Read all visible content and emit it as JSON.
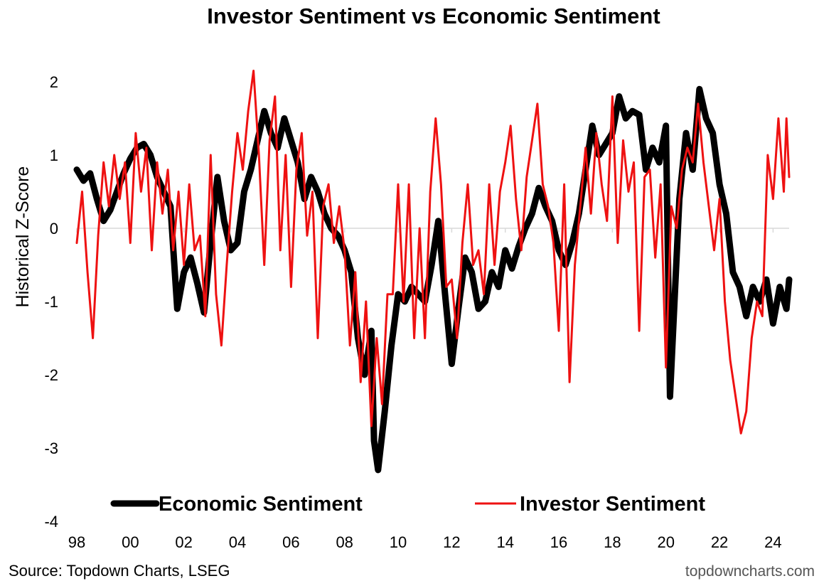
{
  "chart_data": {
    "type": "line",
    "title": "Investor Sentiment vs Economic Sentiment",
    "ylabel": "Historical Z-Score",
    "xlabel": "",
    "ylim": [
      -4,
      2
    ],
    "yticks": [
      2,
      1,
      0,
      -1,
      -2,
      -3,
      -4
    ],
    "xlim": [
      1998,
      2024.6
    ],
    "xticks": [
      {
        "label": "98",
        "x": 1998
      },
      {
        "label": "00",
        "x": 2000
      },
      {
        "label": "02",
        "x": 2002
      },
      {
        "label": "04",
        "x": 2004
      },
      {
        "label": "06",
        "x": 2006
      },
      {
        "label": "08",
        "x": 2008
      },
      {
        "label": "10",
        "x": 2010
      },
      {
        "label": "12",
        "x": 2012
      },
      {
        "label": "14",
        "x": 2014
      },
      {
        "label": "16",
        "x": 2016
      },
      {
        "label": "18",
        "x": 2018
      },
      {
        "label": "20",
        "x": 2020
      },
      {
        "label": "22",
        "x": 2022
      },
      {
        "label": "24",
        "x": 2024
      }
    ],
    "grid": false,
    "zero_line": true,
    "legend_position": "bottom",
    "series": [
      {
        "name": "Economic Sentiment",
        "color": "#000000",
        "points": [
          [
            1998.0,
            0.8
          ],
          [
            1998.25,
            0.65
          ],
          [
            1998.5,
            0.75
          ],
          [
            1998.75,
            0.4
          ],
          [
            1999.0,
            0.1
          ],
          [
            1999.25,
            0.25
          ],
          [
            1999.5,
            0.5
          ],
          [
            1999.75,
            0.75
          ],
          [
            2000.0,
            0.95
          ],
          [
            2000.25,
            1.1
          ],
          [
            2000.5,
            1.15
          ],
          [
            2000.75,
            1.0
          ],
          [
            2001.0,
            0.7
          ],
          [
            2001.25,
            0.5
          ],
          [
            2001.5,
            0.3
          ],
          [
            2001.75,
            -1.1
          ],
          [
            2002.0,
            -0.6
          ],
          [
            2002.25,
            -0.4
          ],
          [
            2002.5,
            -0.75
          ],
          [
            2002.75,
            -1.15
          ],
          [
            2003.0,
            -0.2
          ],
          [
            2003.25,
            0.7
          ],
          [
            2003.5,
            0.1
          ],
          [
            2003.75,
            -0.3
          ],
          [
            2004.0,
            -0.2
          ],
          [
            2004.25,
            0.5
          ],
          [
            2004.5,
            0.8
          ],
          [
            2004.75,
            1.2
          ],
          [
            2005.0,
            1.6
          ],
          [
            2005.25,
            1.3
          ],
          [
            2005.5,
            1.1
          ],
          [
            2005.75,
            1.5
          ],
          [
            2006.0,
            1.2
          ],
          [
            2006.25,
            0.9
          ],
          [
            2006.5,
            0.4
          ],
          [
            2006.75,
            0.7
          ],
          [
            2007.0,
            0.5
          ],
          [
            2007.25,
            0.2
          ],
          [
            2007.5,
            0.0
          ],
          [
            2007.75,
            -0.1
          ],
          [
            2008.0,
            -0.3
          ],
          [
            2008.25,
            -0.6
          ],
          [
            2008.5,
            -1.5
          ],
          [
            2008.75,
            -2.0
          ],
          [
            2009.0,
            -1.4
          ],
          [
            2009.1,
            -2.9
          ],
          [
            2009.25,
            -3.3
          ],
          [
            2009.5,
            -2.5
          ],
          [
            2009.75,
            -1.6
          ],
          [
            2010.0,
            -0.9
          ],
          [
            2010.25,
            -1.0
          ],
          [
            2010.5,
            -0.8
          ],
          [
            2010.75,
            -0.9
          ],
          [
            2011.0,
            -1.0
          ],
          [
            2011.25,
            -0.5
          ],
          [
            2011.5,
            0.1
          ],
          [
            2011.75,
            -0.9
          ],
          [
            2012.0,
            -1.85
          ],
          [
            2012.25,
            -1.1
          ],
          [
            2012.5,
            -0.4
          ],
          [
            2012.75,
            -0.6
          ],
          [
            2013.0,
            -1.1
          ],
          [
            2013.25,
            -1.0
          ],
          [
            2013.5,
            -0.6
          ],
          [
            2013.75,
            -0.8
          ],
          [
            2014.0,
            -0.3
          ],
          [
            2014.25,
            -0.55
          ],
          [
            2014.5,
            -0.25
          ],
          [
            2014.75,
            0.0
          ],
          [
            2015.0,
            0.2
          ],
          [
            2015.25,
            0.55
          ],
          [
            2015.5,
            0.3
          ],
          [
            2015.75,
            0.1
          ],
          [
            2016.0,
            -0.3
          ],
          [
            2016.25,
            -0.5
          ],
          [
            2016.5,
            -0.2
          ],
          [
            2016.75,
            0.2
          ],
          [
            2017.0,
            0.8
          ],
          [
            2017.25,
            1.4
          ],
          [
            2017.5,
            1.0
          ],
          [
            2017.75,
            1.15
          ],
          [
            2018.0,
            1.3
          ],
          [
            2018.25,
            1.8
          ],
          [
            2018.5,
            1.5
          ],
          [
            2018.75,
            1.6
          ],
          [
            2019.0,
            1.55
          ],
          [
            2019.25,
            0.8
          ],
          [
            2019.5,
            1.1
          ],
          [
            2019.75,
            0.9
          ],
          [
            2020.0,
            1.4
          ],
          [
            2020.15,
            -2.3
          ],
          [
            2020.5,
            0.4
          ],
          [
            2020.75,
            1.3
          ],
          [
            2021.0,
            0.8
          ],
          [
            2021.25,
            1.9
          ],
          [
            2021.5,
            1.5
          ],
          [
            2021.75,
            1.3
          ],
          [
            2022.0,
            0.6
          ],
          [
            2022.25,
            0.2
          ],
          [
            2022.5,
            -0.6
          ],
          [
            2022.75,
            -0.8
          ],
          [
            2023.0,
            -1.2
          ],
          [
            2023.25,
            -0.8
          ],
          [
            2023.5,
            -1.0
          ],
          [
            2023.75,
            -0.7
          ],
          [
            2024.0,
            -1.3
          ],
          [
            2024.25,
            -0.8
          ],
          [
            2024.5,
            -1.1
          ],
          [
            2024.6,
            -0.7
          ]
        ]
      },
      {
        "name": "Investor Sentiment",
        "color": "#ee1111",
        "points": [
          [
            1998.0,
            -0.2
          ],
          [
            1998.2,
            0.5
          ],
          [
            1998.4,
            -0.6
          ],
          [
            1998.6,
            -1.5
          ],
          [
            1998.8,
            -0.1
          ],
          [
            1999.0,
            0.9
          ],
          [
            1999.2,
            0.3
          ],
          [
            1999.4,
            1.0
          ],
          [
            1999.6,
            0.4
          ],
          [
            1999.8,
            0.9
          ],
          [
            2000.0,
            -0.2
          ],
          [
            2000.2,
            1.3
          ],
          [
            2000.4,
            0.5
          ],
          [
            2000.6,
            1.1
          ],
          [
            2000.8,
            -0.3
          ],
          [
            2001.0,
            0.9
          ],
          [
            2001.2,
            0.2
          ],
          [
            2001.4,
            0.8
          ],
          [
            2001.6,
            -0.3
          ],
          [
            2001.8,
            0.5
          ],
          [
            2002.0,
            -0.5
          ],
          [
            2002.2,
            0.6
          ],
          [
            2002.4,
            -0.3
          ],
          [
            2002.6,
            -0.1
          ],
          [
            2002.8,
            -1.2
          ],
          [
            2003.0,
            1.0
          ],
          [
            2003.2,
            -0.9
          ],
          [
            2003.4,
            -1.6
          ],
          [
            2003.6,
            -0.5
          ],
          [
            2003.8,
            0.5
          ],
          [
            2004.0,
            1.3
          ],
          [
            2004.2,
            0.8
          ],
          [
            2004.4,
            1.6
          ],
          [
            2004.6,
            2.15
          ],
          [
            2004.8,
            1.0
          ],
          [
            2005.0,
            -0.5
          ],
          [
            2005.2,
            1.2
          ],
          [
            2005.4,
            1.8
          ],
          [
            2005.6,
            -0.3
          ],
          [
            2005.8,
            1.0
          ],
          [
            2006.0,
            -0.8
          ],
          [
            2006.2,
            0.8
          ],
          [
            2006.4,
            1.3
          ],
          [
            2006.6,
            -0.1
          ],
          [
            2006.8,
            0.5
          ],
          [
            2007.0,
            -1.5
          ],
          [
            2007.2,
            0.3
          ],
          [
            2007.4,
            0.6
          ],
          [
            2007.6,
            -0.2
          ],
          [
            2007.8,
            0.3
          ],
          [
            2008.0,
            -0.3
          ],
          [
            2008.2,
            -1.6
          ],
          [
            2008.4,
            -0.6
          ],
          [
            2008.6,
            -2.1
          ],
          [
            2008.8,
            -1.0
          ],
          [
            2009.0,
            -2.7
          ],
          [
            2009.2,
            -1.5
          ],
          [
            2009.4,
            -2.4
          ],
          [
            2009.6,
            -0.9
          ],
          [
            2009.8,
            -0.9
          ],
          [
            2010.0,
            0.6
          ],
          [
            2010.2,
            -1.0
          ],
          [
            2010.4,
            0.6
          ],
          [
            2010.6,
            -1.5
          ],
          [
            2010.8,
            0.0
          ],
          [
            2011.0,
            -1.5
          ],
          [
            2011.2,
            0.5
          ],
          [
            2011.4,
            1.5
          ],
          [
            2011.6,
            0.6
          ],
          [
            2011.8,
            -0.8
          ],
          [
            2012.0,
            -0.7
          ],
          [
            2012.2,
            -1.5
          ],
          [
            2012.4,
            -0.2
          ],
          [
            2012.6,
            0.6
          ],
          [
            2012.8,
            -0.5
          ],
          [
            2013.0,
            -0.3
          ],
          [
            2013.2,
            -0.9
          ],
          [
            2013.4,
            0.6
          ],
          [
            2013.6,
            -0.5
          ],
          [
            2013.8,
            0.5
          ],
          [
            2014.0,
            0.9
          ],
          [
            2014.2,
            1.4
          ],
          [
            2014.4,
            0.4
          ],
          [
            2014.6,
            -0.3
          ],
          [
            2014.8,
            0.7
          ],
          [
            2015.0,
            1.2
          ],
          [
            2015.2,
            1.7
          ],
          [
            2015.4,
            0.6
          ],
          [
            2015.6,
            0.3
          ],
          [
            2015.8,
            -0.2
          ],
          [
            2016.0,
            -1.4
          ],
          [
            2016.2,
            0.6
          ],
          [
            2016.4,
            -2.1
          ],
          [
            2016.6,
            -0.5
          ],
          [
            2016.8,
            0.3
          ],
          [
            2017.0,
            1.1
          ],
          [
            2017.2,
            0.2
          ],
          [
            2017.4,
            1.3
          ],
          [
            2017.6,
            0.6
          ],
          [
            2017.8,
            0.1
          ],
          [
            2018.0,
            1.8
          ],
          [
            2018.2,
            -0.2
          ],
          [
            2018.4,
            1.2
          ],
          [
            2018.6,
            0.5
          ],
          [
            2018.8,
            0.9
          ],
          [
            2019.0,
            -1.4
          ],
          [
            2019.2,
            0.7
          ],
          [
            2019.4,
            0.8
          ],
          [
            2019.6,
            -0.4
          ],
          [
            2019.8,
            0.6
          ],
          [
            2020.0,
            -1.9
          ],
          [
            2020.2,
            0.3
          ],
          [
            2020.4,
            0.0
          ],
          [
            2020.6,
            0.8
          ],
          [
            2020.8,
            1.1
          ],
          [
            2021.0,
            0.9
          ],
          [
            2021.2,
            1.7
          ],
          [
            2021.4,
            0.9
          ],
          [
            2021.6,
            0.3
          ],
          [
            2021.8,
            -0.3
          ],
          [
            2022.0,
            0.4
          ],
          [
            2022.2,
            -1.0
          ],
          [
            2022.4,
            -1.8
          ],
          [
            2022.6,
            -2.3
          ],
          [
            2022.8,
            -2.8
          ],
          [
            2023.0,
            -2.5
          ],
          [
            2023.2,
            -1.5
          ],
          [
            2023.4,
            -1.0
          ],
          [
            2023.6,
            -1.2
          ],
          [
            2023.8,
            1.0
          ],
          [
            2024.0,
            0.4
          ],
          [
            2024.2,
            1.5
          ],
          [
            2024.4,
            0.5
          ],
          [
            2024.5,
            1.5
          ],
          [
            2024.6,
            0.7
          ]
        ]
      }
    ],
    "source": "Source: Topdown Charts, LSEG",
    "brand": "topdowncharts.com"
  }
}
